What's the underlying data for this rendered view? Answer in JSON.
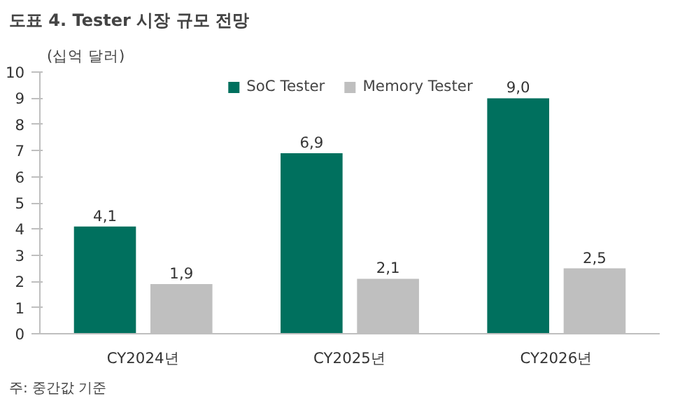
{
  "chart_data": {
    "type": "bar",
    "title": "도표 4. Tester 시장 규모 전망",
    "ylabel": "(십억 달러)",
    "categories": [
      "CY2024년",
      "CY2025년",
      "CY2026년"
    ],
    "series": [
      {
        "name": "SoC Tester",
        "color": "#00705e",
        "values": [
          4.1,
          6.9,
          9.0
        ],
        "value_labels": [
          "4,1",
          "6,9",
          "9,0"
        ]
      },
      {
        "name": "Memory Tester",
        "color": "#bfbfbf",
        "values": [
          1.9,
          2.1,
          2.5
        ],
        "value_labels": [
          "1,9",
          "2,1",
          "2,5"
        ]
      }
    ],
    "ylim": [
      0,
      10
    ],
    "yticks": [
      0,
      1,
      2,
      3,
      4,
      5,
      6,
      7,
      8,
      9,
      10
    ],
    "grid": false,
    "legend": "top",
    "annotations": [
      "주: 중간값 기준"
    ]
  }
}
